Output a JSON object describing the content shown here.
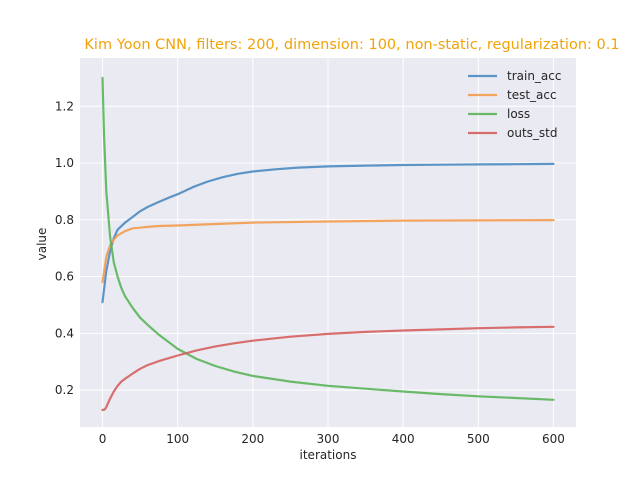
{
  "chart_data": {
    "type": "line",
    "title": "Kim Yoon CNN, filters: 200, dimension: 100, non-static, regularization: 0.1",
    "xlabel": "iterations",
    "ylabel": "value",
    "xlim": [
      -30,
      630
    ],
    "ylim": [
      0.07,
      1.37
    ],
    "x_ticks": [
      0,
      100,
      200,
      300,
      400,
      500,
      600
    ],
    "x_tick_labels": [
      "0",
      "100",
      "200",
      "300",
      "400",
      "500",
      "600"
    ],
    "y_ticks": [
      0.2,
      0.4,
      0.6,
      0.8,
      1.0,
      1.2
    ],
    "y_tick_labels": [
      "0.2",
      "0.4",
      "0.6",
      "0.8",
      "1.0",
      "1.2"
    ],
    "grid": true,
    "legend_position": "top-right",
    "colors": {
      "title": "#f0a30a",
      "background": "#eaeaf2",
      "grid": "#ffffff"
    },
    "series": [
      {
        "name": "train_acc",
        "color": "#4c8bc1",
        "x": [
          0,
          5,
          10,
          15,
          20,
          30,
          40,
          50,
          60,
          75,
          90,
          100,
          120,
          140,
          160,
          180,
          200,
          230,
          260,
          300,
          350,
          400,
          450,
          500,
          550,
          600
        ],
        "y": [
          0.51,
          0.62,
          0.69,
          0.735,
          0.765,
          0.79,
          0.81,
          0.83,
          0.845,
          0.863,
          0.88,
          0.89,
          0.915,
          0.935,
          0.95,
          0.962,
          0.97,
          0.978,
          0.984,
          0.988,
          0.991,
          0.993,
          0.994,
          0.995,
          0.996,
          0.997
        ]
      },
      {
        "name": "test_acc",
        "color": "#f39c4f",
        "x": [
          0,
          5,
          10,
          15,
          20,
          30,
          40,
          50,
          60,
          75,
          100,
          150,
          200,
          300,
          400,
          500,
          600
        ],
        "y": [
          0.58,
          0.67,
          0.71,
          0.73,
          0.745,
          0.76,
          0.77,
          0.772,
          0.775,
          0.778,
          0.78,
          0.785,
          0.79,
          0.794,
          0.797,
          0.798,
          0.799
        ]
      },
      {
        "name": "loss",
        "color": "#5ab55a",
        "x": [
          0,
          2,
          5,
          10,
          15,
          20,
          25,
          30,
          40,
          50,
          60,
          75,
          100,
          125,
          150,
          175,
          200,
          250,
          300,
          350,
          400,
          450,
          500,
          550,
          600
        ],
        "y": [
          1.3,
          1.1,
          0.9,
          0.74,
          0.65,
          0.6,
          0.56,
          0.53,
          0.49,
          0.455,
          0.43,
          0.395,
          0.345,
          0.31,
          0.285,
          0.265,
          0.25,
          0.23,
          0.215,
          0.205,
          0.195,
          0.186,
          0.178,
          0.172,
          0.166
        ]
      },
      {
        "name": "outs_std",
        "color": "#d65f5f",
        "x": [
          0,
          3,
          5,
          10,
          15,
          20,
          25,
          30,
          40,
          50,
          60,
          75,
          100,
          125,
          150,
          175,
          200,
          250,
          300,
          350,
          400,
          450,
          500,
          550,
          600
        ],
        "y": [
          0.13,
          0.132,
          0.14,
          0.17,
          0.195,
          0.215,
          0.23,
          0.24,
          0.258,
          0.275,
          0.288,
          0.302,
          0.322,
          0.34,
          0.354,
          0.365,
          0.374,
          0.388,
          0.398,
          0.405,
          0.41,
          0.414,
          0.418,
          0.421,
          0.423
        ]
      }
    ]
  }
}
